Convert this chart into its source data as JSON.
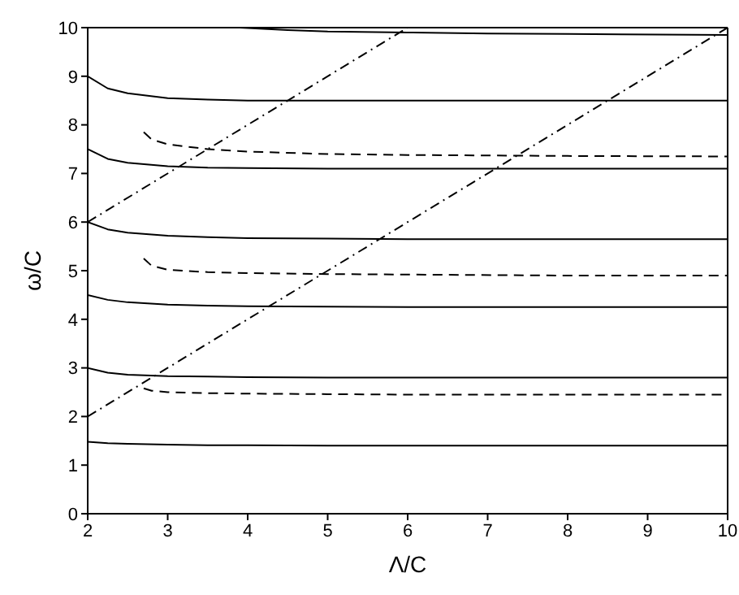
{
  "chart_data": {
    "type": "line",
    "xlabel": "Λ/C",
    "ylabel": "ω/C",
    "xlim": [
      2,
      10
    ],
    "xticks": [
      2,
      3,
      4,
      5,
      6,
      7,
      8,
      9,
      10
    ],
    "ylim": [
      0,
      10
    ],
    "yticks": [
      0,
      1,
      2,
      3,
      4,
      5,
      6,
      7,
      8,
      9,
      10
    ],
    "grid": false,
    "marker": "none",
    "series": [
      {
        "color": "#000000",
        "line_style": "solid",
        "x": [
          2,
          2.25,
          2.5,
          3,
          3.5,
          4,
          5,
          6,
          8,
          10
        ],
        "values": [
          1.48,
          1.45,
          1.44,
          1.42,
          1.41,
          1.41,
          1.4,
          1.4,
          1.4,
          1.4
        ]
      },
      {
        "color": "#000000",
        "line_style": "solid",
        "x": [
          2,
          2.25,
          2.5,
          3,
          3.5,
          4,
          5,
          6,
          8,
          10
        ],
        "values": [
          3.0,
          2.9,
          2.86,
          2.83,
          2.82,
          2.81,
          2.8,
          2.8,
          2.8,
          2.8
        ]
      },
      {
        "color": "#000000",
        "line_style": "solid",
        "x": [
          2,
          2.25,
          2.5,
          3,
          3.5,
          4,
          5,
          6,
          8,
          10
        ],
        "values": [
          4.5,
          4.4,
          4.35,
          4.3,
          4.28,
          4.27,
          4.26,
          4.25,
          4.25,
          4.25
        ]
      },
      {
        "color": "#000000",
        "line_style": "solid",
        "x": [
          2,
          2.25,
          2.5,
          3,
          3.5,
          4,
          5,
          6,
          8,
          10
        ],
        "values": [
          6.0,
          5.85,
          5.78,
          5.72,
          5.69,
          5.67,
          5.66,
          5.65,
          5.65,
          5.65
        ]
      },
      {
        "color": "#000000",
        "line_style": "solid",
        "x": [
          2,
          2.25,
          2.5,
          3,
          3.5,
          4,
          5,
          6,
          8,
          10
        ],
        "values": [
          7.5,
          7.3,
          7.22,
          7.15,
          7.12,
          7.11,
          7.1,
          7.1,
          7.1,
          7.1
        ]
      },
      {
        "color": "#000000",
        "line_style": "solid",
        "x": [
          2,
          2.25,
          2.5,
          3,
          3.5,
          4,
          5,
          6,
          8,
          10
        ],
        "values": [
          9.0,
          8.75,
          8.65,
          8.55,
          8.52,
          8.5,
          8.5,
          8.5,
          8.5,
          8.5
        ]
      },
      {
        "color": "#000000",
        "line_style": "solid",
        "x": [
          3.9,
          4.5,
          5,
          6,
          7,
          8,
          10
        ],
        "values": [
          10,
          9.95,
          9.92,
          9.9,
          9.88,
          9.87,
          9.85
        ]
      },
      {
        "color": "#000000",
        "line_style": "dashed",
        "x": [
          2.7,
          2.8,
          3,
          3.5,
          4,
          5,
          6,
          8,
          10
        ],
        "values": [
          2.58,
          2.53,
          2.5,
          2.48,
          2.47,
          2.46,
          2.45,
          2.45,
          2.45
        ]
      },
      {
        "color": "#000000",
        "line_style": "dashed",
        "x": [
          2.7,
          2.8,
          3,
          3.5,
          4,
          5,
          6,
          8,
          10
        ],
        "values": [
          5.25,
          5.1,
          5.02,
          4.97,
          4.95,
          4.93,
          4.92,
          4.9,
          4.9
        ]
      },
      {
        "color": "#000000",
        "line_style": "dashed",
        "x": [
          2.7,
          2.8,
          3,
          3.5,
          4,
          5,
          6,
          8,
          10
        ],
        "values": [
          7.85,
          7.7,
          7.6,
          7.5,
          7.45,
          7.4,
          7.38,
          7.36,
          7.35
        ]
      },
      {
        "color": "#000000",
        "line_style": "dashdot",
        "x": [
          2,
          10
        ],
        "values": [
          2,
          10
        ]
      },
      {
        "color": "#000000",
        "line_style": "dashdot",
        "x": [
          2,
          6
        ],
        "values": [
          6,
          10
        ]
      }
    ]
  }
}
